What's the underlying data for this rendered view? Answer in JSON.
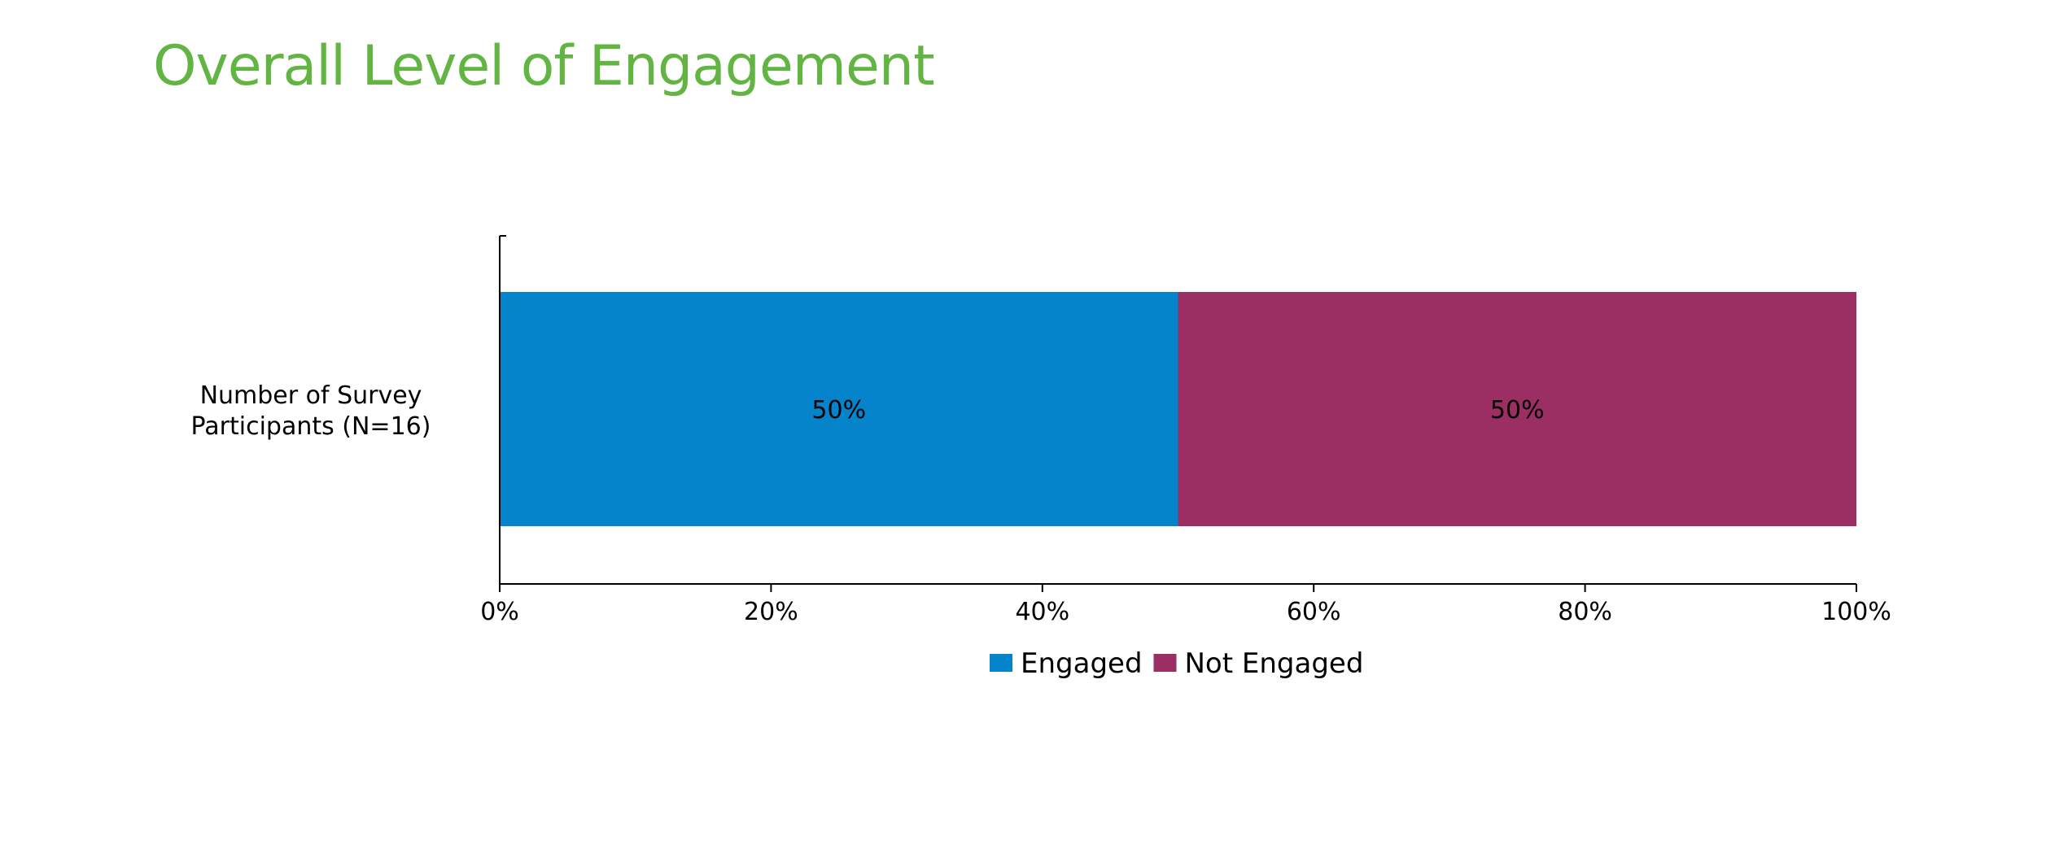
{
  "slide": {
    "title": "Overall Level of Engagement"
  },
  "colors": {
    "title": "#62b543",
    "engaged": "#0584cb",
    "not_engaged": "#9b2e62"
  },
  "chart_data": {
    "type": "bar",
    "orientation": "horizontal",
    "stacked": "percent",
    "categories": [
      "Number of Survey Participants (N=16)"
    ],
    "category_label_lines": [
      "Number of Survey",
      "Participants (N=16)"
    ],
    "series": [
      {
        "name": "Engaged",
        "values": [
          50
        ],
        "data_labels": [
          "50%"
        ],
        "color": "#0584cb"
      },
      {
        "name": "Not Engaged",
        "values": [
          50
        ],
        "data_labels": [
          "50%"
        ],
        "color": "#9b2e62"
      }
    ],
    "x_ticks": [
      "0%",
      "20%",
      "40%",
      "60%",
      "80%",
      "100%"
    ],
    "xlim": [
      0,
      100
    ],
    "xlabel": "",
    "ylabel": "",
    "grid": false,
    "legend": "bottom"
  }
}
